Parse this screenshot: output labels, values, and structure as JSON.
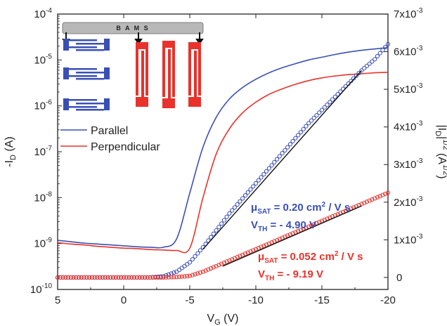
{
  "chart_data": {
    "type": "line",
    "xlabel_main": "V",
    "xlabel_sub": "G",
    "xlabel_unit": " (V)",
    "ylabel_left": {
      "prefix": "-I",
      "sub": "D",
      "unit": " (A)"
    },
    "ylabel_right": {
      "pre": "|I",
      "sub": "D",
      "mid": "|",
      "sup": "1/2",
      "post1": " (A",
      "sup2": "1/2",
      "post2": ")"
    },
    "x_ticks": [
      "5",
      "0",
      "-5",
      "-10",
      "-15",
      "-20"
    ],
    "x_tick_values": [
      5,
      0,
      -5,
      -10,
      -15,
      -20
    ],
    "xlim": [
      5,
      -20
    ],
    "y_left_ticks": [
      {
        "base": "10",
        "exp": "-10",
        "value": -10
      },
      {
        "base": "10",
        "exp": "-9",
        "value": -9
      },
      {
        "base": "10",
        "exp": "-8",
        "value": -8
      },
      {
        "base": "10",
        "exp": "-7",
        "value": -7
      },
      {
        "base": "10",
        "exp": "-6",
        "value": -6
      },
      {
        "base": "10",
        "exp": "-5",
        "value": -5
      },
      {
        "base": "10",
        "exp": "-4",
        "value": -4
      }
    ],
    "y_left_scale": "log",
    "ylim_left_log10": [
      -10,
      -4
    ],
    "y_right_ticks": [
      {
        "text": "0",
        "base": "",
        "exp": "",
        "value": 0
      },
      {
        "text": "1x10",
        "base": "1x10",
        "exp": "-3",
        "value": 0.001
      },
      {
        "text": "2x10",
        "base": "2x10",
        "exp": "-3",
        "value": 0.002
      },
      {
        "text": "3x10",
        "base": "3x10",
        "exp": "-3",
        "value": 0.003
      },
      {
        "text": "4x10",
        "base": "4x10",
        "exp": "-3",
        "value": 0.004
      },
      {
        "text": "5x10",
        "base": "5x10",
        "exp": "-3",
        "value": 0.005
      },
      {
        "text": "6x10",
        "base": "6x10",
        "exp": "-3",
        "value": 0.006
      },
      {
        "text": "7x10",
        "base": "7x10",
        "exp": "-3",
        "value": 0.007
      }
    ],
    "ylim_right": [
      -0.00032,
      0.007
    ],
    "legend": [
      {
        "name": "Parallel",
        "color": "#3a4fb5"
      },
      {
        "name": "Perpendicular",
        "color": "#e8322b"
      }
    ],
    "legend_position": "upper-left",
    "inset_label": "B A M S",
    "series": [
      {
        "name": "Parallel",
        "axis": "left",
        "color": "#3a4fb5",
        "x": [
          5,
          4,
          3,
          2,
          1,
          0,
          -1,
          -2,
          -3,
          -4,
          -5,
          -6,
          -7,
          -8,
          -9,
          -10,
          -11,
          -12,
          -13,
          -14,
          -15,
          -16,
          -17,
          -18,
          -19,
          -20
        ],
        "y_log10": [
          -8.93,
          -8.96,
          -8.99,
          -9.01,
          -9.03,
          -9.05,
          -9.07,
          -9.08,
          -9.08,
          -8.9,
          -7.9,
          -6.9,
          -6.25,
          -5.85,
          -5.6,
          -5.42,
          -5.28,
          -5.17,
          -5.08,
          -5.0,
          -4.94,
          -4.88,
          -4.83,
          -4.79,
          -4.76,
          -4.73
        ]
      },
      {
        "name": "Perpendicular",
        "axis": "left",
        "color": "#e8322b",
        "x": [
          5,
          4,
          3,
          2,
          1,
          0,
          -1,
          -2,
          -3,
          -4,
          -5,
          -6,
          -7,
          -8,
          -9,
          -10,
          -11,
          -12,
          -13,
          -14,
          -15,
          -16,
          -17,
          -18,
          -19,
          -20
        ],
        "y_log10": [
          -8.98,
          -9.01,
          -9.03,
          -9.06,
          -9.08,
          -9.1,
          -9.11,
          -9.13,
          -9.14,
          -9.15,
          -9.1,
          -8.0,
          -7.05,
          -6.5,
          -6.15,
          -5.92,
          -5.75,
          -5.63,
          -5.53,
          -5.45,
          -5.39,
          -5.35,
          -5.32,
          -5.3,
          -5.28,
          -5.27
        ]
      },
      {
        "name": "|I_D|^1/2 (parallel)",
        "axis": "right",
        "color": "#3a4fb5",
        "marker": "open-circle",
        "x": [
          5,
          4,
          3,
          2,
          1,
          0,
          -1,
          -2,
          -3,
          -4,
          -5,
          -6,
          -7,
          -8,
          -9,
          -10,
          -11,
          -12,
          -13,
          -14,
          -15,
          -16,
          -17,
          -18,
          -19,
          -20
        ],
        "y": [
          0,
          0,
          0,
          0,
          0,
          0,
          0,
          0,
          3e-05,
          0.00015,
          0.0004,
          0.0008,
          0.00125,
          0.0017,
          0.0021,
          0.0025,
          0.0029,
          0.0033,
          0.0037,
          0.0041,
          0.00445,
          0.0048,
          0.00515,
          0.0055,
          0.0058,
          0.0062
        ]
      },
      {
        "name": "|I_D|^1/2 (perpendicular)",
        "axis": "right",
        "color": "#e8322b",
        "marker": "open-circle",
        "x": [
          5,
          4,
          3,
          2,
          1,
          0,
          -1,
          -2,
          -3,
          -4,
          -5,
          -6,
          -7,
          -8,
          -9,
          -10,
          -11,
          -12,
          -13,
          -14,
          -15,
          -16,
          -17,
          -18,
          -19,
          -20
        ],
        "y": [
          0,
          0,
          0,
          0,
          0,
          0,
          0,
          0,
          0,
          1e-05,
          4e-05,
          0.00015,
          0.0003,
          0.00045,
          0.0006,
          0.00075,
          0.0009,
          0.00105,
          0.0012,
          0.00135,
          0.0015,
          0.00165,
          0.0018,
          0.00195,
          0.0021,
          0.00225
        ]
      }
    ],
    "fit_lines": [
      {
        "color": "#111111",
        "x": [
          -6,
          -18
        ],
        "y": [
          0.00075,
          0.0055
        ]
      },
      {
        "color": "#111111",
        "x": [
          -7.5,
          -18
        ],
        "y": [
          0.0003,
          0.0019
        ]
      }
    ],
    "annotations": [
      {
        "id": "mu_par",
        "color": "#3a4fb5",
        "pre": "μ",
        "sub": "SAT",
        "text": " = 0.20 cm",
        "sup": "2",
        "post": " / V s"
      },
      {
        "id": "vth_par",
        "color": "#3a4fb5",
        "pre": "V",
        "sub": "TH",
        "text": " = - 4.90 V",
        "sup": "",
        "post": ""
      },
      {
        "id": "mu_perp",
        "color": "#e8322b",
        "pre": "μ",
        "sub": "SAT",
        "text": " = 0.052 cm",
        "sup": "2",
        "post": " / V s"
      },
      {
        "id": "vth_perp",
        "color": "#e8322b",
        "pre": "V",
        "sub": "TH",
        "text": " = - 9.19 V",
        "sup": "",
        "post": ""
      }
    ]
  }
}
